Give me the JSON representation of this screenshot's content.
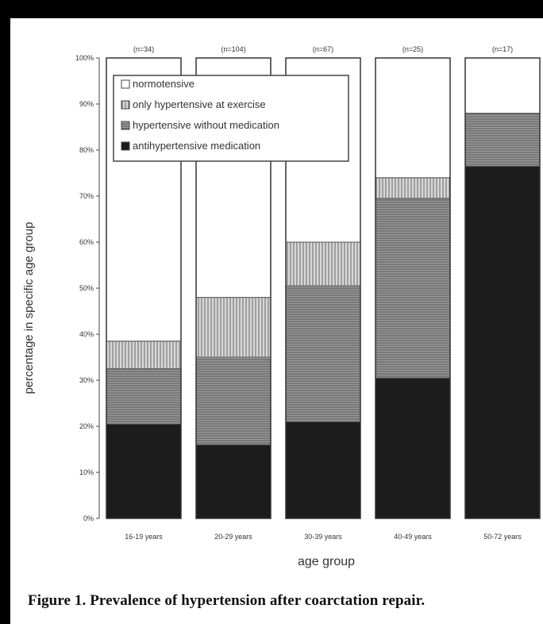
{
  "caption": "Figure 1. Prevalence of hypertension after coarctation repair.",
  "chart_data": {
    "type": "bar",
    "stacked": true,
    "categories": [
      "16-19 years",
      "20-29 years",
      "30-39 years",
      "40-49 years",
      "50-72 years"
    ],
    "group_sizes": [
      "(n=34)",
      "(n=104)",
      "(n=67)",
      "(n=25)",
      "(n=17)"
    ],
    "series": [
      {
        "name": "antihypertensive medication",
        "values": [
          20.5,
          16,
          21,
          30.5,
          76.5
        ]
      },
      {
        "name": "hypertensive without medication",
        "values": [
          12,
          19,
          29.5,
          39,
          11.5
        ]
      },
      {
        "name": "only hypertensive at exercise",
        "values": [
          6,
          13,
          9.5,
          4.5,
          0
        ]
      },
      {
        "name": "normotensive",
        "values": [
          61.5,
          52,
          40,
          26,
          12
        ]
      }
    ],
    "ylabel": "percentage in specific age group",
    "xlabel": "age group",
    "ylim": [
      0,
      100
    ],
    "yticks": [
      "0%",
      "10%",
      "20%",
      "30%",
      "40%",
      "50%",
      "60%",
      "70%",
      "80%",
      "90%",
      "100%"
    ],
    "legend_position": "top-left",
    "legend_order": [
      "normotensive",
      "only hypertensive at exercise",
      "hypertensive without medication",
      "antihypertensive medication"
    ],
    "grid": false
  }
}
